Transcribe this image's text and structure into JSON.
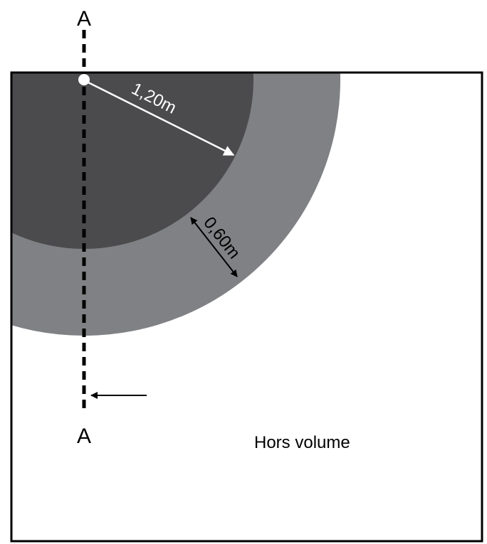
{
  "diagram": {
    "section_label_top": "A",
    "section_label_bottom": "A",
    "radius_inner": "1,20m",
    "ring_width": "0,60m",
    "outside_zone": "Hors volume"
  },
  "colors": {
    "inner_zone": "#4b4b4d",
    "outer_zone": "#808184",
    "outline": "#000000",
    "arrow_white": "#ffffff"
  }
}
